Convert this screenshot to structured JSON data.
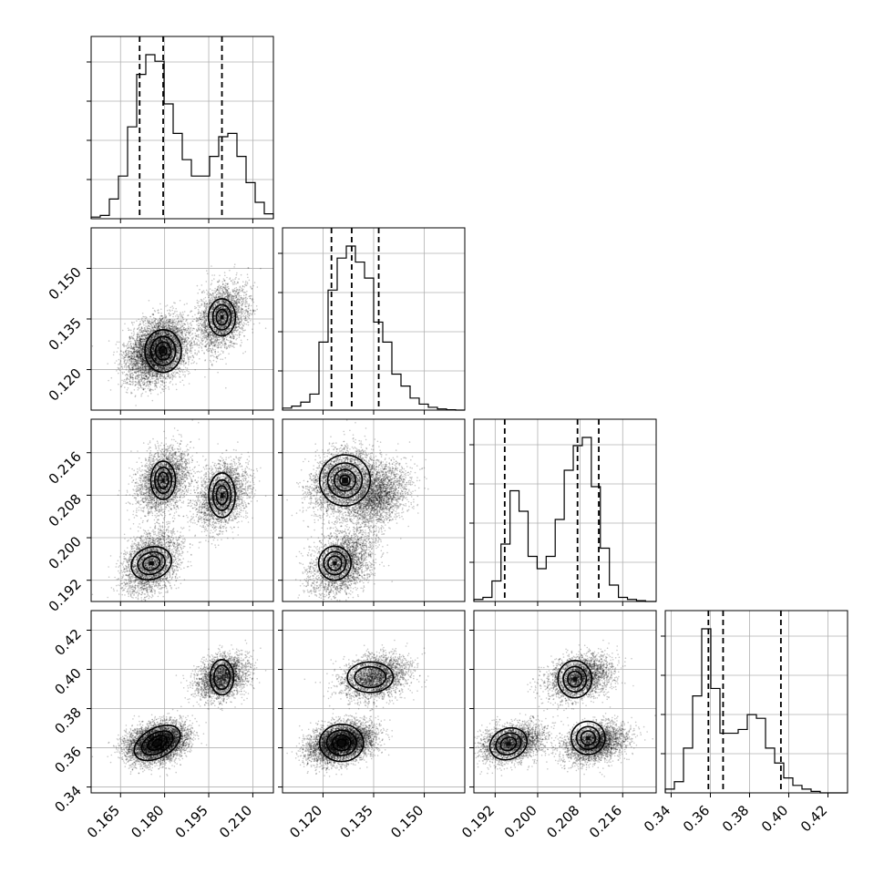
{
  "chart_data": {
    "type": "corner",
    "variables": [
      {
        "range": [
          0.155,
          0.217
        ],
        "ticks": [
          "0.165",
          "0.180",
          "0.195",
          "0.210"
        ],
        "quantiles": [
          0.1715,
          0.1795,
          0.1995
        ],
        "hist": {
          "start": 0.155,
          "step": 0.0031,
          "counts": [
            0.5,
            1,
            6,
            13,
            28,
            44,
            50,
            48,
            35,
            26,
            18,
            13,
            13,
            19,
            25,
            26,
            19,
            11,
            5,
            1.5
          ]
        },
        "modes": [
          {
            "mean": [
              0.1795,
              0.1255,
              0.2108,
              0.3625
            ],
            "sd": [
              0.0043,
              0.0045,
              0.0029,
              0.0048
            ],
            "w": 0.35
          },
          {
            "mean": [
              0.1755,
              0.1255,
              0.1952,
              0.3625
            ],
            "sd": [
              0.0046,
              0.0045,
              0.0029,
              0.0048
            ],
            "w": 0.33
          },
          {
            "mean": [
              0.1995,
              0.1355,
              0.208,
              0.396
            ],
            "sd": [
              0.0042,
              0.0047,
              0.003,
              0.0055
            ],
            "w": 0.32
          }
        ]
      },
      {
        "range": [
          0.108,
          0.162
        ],
        "ticks": [
          "0.120",
          "0.135",
          "0.150"
        ],
        "quantiles": [
          0.1225,
          0.1285,
          0.1365
        ],
        "hist": {
          "start": 0.108,
          "step": 0.0027,
          "counts": [
            0.5,
            1,
            2,
            4,
            17,
            30,
            38,
            41,
            37,
            33,
            22,
            17,
            9,
            6,
            3,
            1.5,
            0.7,
            0.3,
            0.1,
            0
          ]
        }
      },
      {
        "range": [
          0.188,
          0.2223
        ],
        "ticks": [
          "0.192",
          "0.200",
          "0.208",
          "0.216"
        ],
        "quantiles": [
          0.1938,
          0.2075,
          0.2115
        ],
        "hist": {
          "start": 0.188,
          "step": 0.0017,
          "counts": [
            0.5,
            1,
            5,
            14,
            27,
            22,
            11,
            8,
            11,
            20,
            32,
            38,
            40,
            28,
            13,
            4,
            1,
            0.5,
            0.2,
            0
          ]
        }
      },
      {
        "range": [
          0.337,
          0.43
        ],
        "ticks": [
          "0.34",
          "0.36",
          "0.38",
          "0.40",
          "0.42"
        ],
        "quantiles": [
          0.359,
          0.3665,
          0.396
        ],
        "hist": {
          "start": 0.337,
          "step": 0.00465,
          "counts": [
            0.5,
            1.5,
            6,
            13,
            22,
            14,
            8,
            8,
            8.5,
            10.5,
            10,
            6,
            4,
            2,
            1,
            0.5,
            0.2,
            0,
            0,
            0
          ]
        }
      }
    ],
    "pair_modes": {
      "1_0": [
        {
          "c": [
            0.1795,
            0.1255
          ],
          "s": [
            0.0062,
            0.0063
          ],
          "lev": 4
        },
        {
          "c": [
            0.1995,
            0.1355
          ],
          "s": [
            0.0046,
            0.0055
          ],
          "lev": 3
        }
      ],
      "2_0": [
        {
          "c": [
            0.1795,
            0.2108
          ],
          "s": [
            0.0042,
            0.0036
          ],
          "lev": 3
        },
        {
          "c": [
            0.1755,
            0.1952
          ],
          "s": [
            0.007,
            0.003
          ],
          "lev": 3,
          "rot": -0.35
        },
        {
          "c": [
            0.1995,
            0.208
          ],
          "s": [
            0.0045,
            0.0042
          ],
          "lev": 3
        }
      ],
      "2_1": [
        {
          "c": [
            0.1265,
            0.2108
          ],
          "s": [
            0.0075,
            0.0048
          ],
          "lev": 4,
          "rot": 0.2
        },
        {
          "c": [
            0.1235,
            0.1952
          ],
          "s": [
            0.0048,
            0.0032
          ],
          "lev": 3
        }
      ],
      "3_0": [
        {
          "c": [
            0.1775,
            0.3625
          ],
          "s": [
            0.0085,
            0.0075
          ],
          "lev": 4,
          "rot": -0.5
        },
        {
          "c": [
            0.1995,
            0.396
          ],
          "s": [
            0.004,
            0.009
          ],
          "lev": 2
        }
      ],
      "3_1": [
        {
          "c": [
            0.1255,
            0.3625
          ],
          "s": [
            0.0065,
            0.0095
          ],
          "lev": 4
        },
        {
          "c": [
            0.134,
            0.396
          ],
          "s": [
            0.0068,
            0.0078
          ],
          "lev": 2
        }
      ],
      "3_2": [
        {
          "c": [
            0.1945,
            0.362
          ],
          "s": [
            0.0036,
            0.0078
          ],
          "lev": 3,
          "rot": -0.4
        },
        {
          "c": [
            0.2095,
            0.365
          ],
          "s": [
            0.0032,
            0.0085
          ],
          "lev": 3
        },
        {
          "c": [
            0.207,
            0.395
          ],
          "s": [
            0.0032,
            0.0095
          ],
          "lev": 3
        }
      ]
    }
  }
}
